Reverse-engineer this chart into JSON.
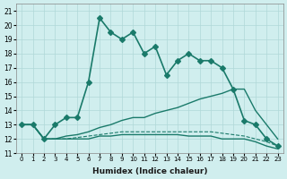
{
  "xlabel": "Humidex (Indice chaleur)",
  "ylabel": "",
  "background_color": "#d0eeee",
  "grid_color": "#b0d8d8",
  "line_color": "#1a7a6a",
  "xlim": [
    -0.5,
    23.5
  ],
  "ylim": [
    11,
    21.5
  ],
  "yticks": [
    11,
    12,
    13,
    14,
    15,
    16,
    17,
    18,
    19,
    20,
    21
  ],
  "xticks": [
    0,
    1,
    2,
    3,
    4,
    5,
    6,
    7,
    8,
    9,
    10,
    11,
    12,
    13,
    14,
    15,
    16,
    17,
    18,
    19,
    20,
    21,
    22,
    23
  ],
  "series": [
    {
      "x": [
        0,
        1,
        2,
        3,
        4,
        5,
        6,
        7,
        8,
        9,
        10,
        11,
        12,
        13,
        14,
        15,
        16,
        17,
        18,
        19,
        20,
        21,
        22,
        23
      ],
      "y": [
        13.0,
        13.0,
        12.0,
        13.0,
        13.5,
        13.5,
        16.0,
        20.5,
        19.5,
        19.0,
        19.5,
        18.0,
        18.5,
        16.5,
        17.5,
        18.0,
        17.5,
        17.5,
        17.0,
        15.5,
        13.3,
        13.0,
        12.0,
        11.5
      ],
      "style": "-",
      "marker": "D",
      "markersize": 3,
      "linewidth": 1.2,
      "color": "#1a7a6a"
    },
    {
      "x": [
        0,
        1,
        2,
        3,
        4,
        5,
        6,
        7,
        8,
        9,
        10,
        11,
        12,
        13,
        14,
        15,
        16,
        17,
        18,
        19,
        20,
        21,
        22,
        23
      ],
      "y": [
        13.0,
        13.0,
        12.0,
        12.0,
        12.2,
        12.3,
        12.5,
        12.8,
        13.0,
        13.3,
        13.5,
        13.5,
        13.8,
        14.0,
        14.2,
        14.5,
        14.8,
        15.0,
        15.2,
        15.5,
        15.5,
        14.0,
        13.0,
        12.0
      ],
      "style": "-",
      "marker": null,
      "markersize": 0,
      "linewidth": 1.0,
      "color": "#1a7a6a"
    },
    {
      "x": [
        0,
        1,
        2,
        3,
        4,
        5,
        6,
        7,
        8,
        9,
        10,
        11,
        12,
        13,
        14,
        15,
        16,
        17,
        18,
        19,
        20,
        21,
        22,
        23
      ],
      "y": [
        13.0,
        13.0,
        12.0,
        12.0,
        12.0,
        12.0,
        12.0,
        12.2,
        12.2,
        12.3,
        12.3,
        12.3,
        12.3,
        12.3,
        12.3,
        12.2,
        12.2,
        12.2,
        12.0,
        12.0,
        12.0,
        11.8,
        11.5,
        11.3
      ],
      "style": "-",
      "marker": null,
      "markersize": 0,
      "linewidth": 1.0,
      "color": "#1a7a6a"
    },
    {
      "x": [
        0,
        1,
        2,
        3,
        4,
        5,
        6,
        7,
        8,
        9,
        10,
        11,
        12,
        13,
        14,
        15,
        16,
        17,
        18,
        19,
        20,
        21,
        22,
        23
      ],
      "y": [
        13.0,
        13.0,
        12.0,
        12.0,
        12.0,
        12.1,
        12.2,
        12.3,
        12.4,
        12.5,
        12.5,
        12.5,
        12.5,
        12.5,
        12.5,
        12.5,
        12.5,
        12.5,
        12.4,
        12.3,
        12.2,
        12.0,
        11.8,
        11.5
      ],
      "style": "--",
      "marker": null,
      "markersize": 0,
      "linewidth": 0.8,
      "color": "#1a7a6a"
    }
  ]
}
